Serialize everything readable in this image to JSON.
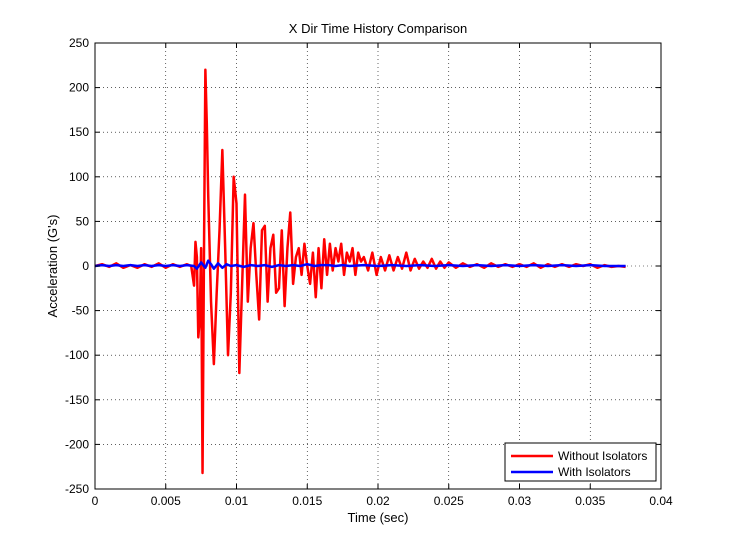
{
  "chart_data": {
    "type": "line",
    "title": "X Dir Time History Comparison",
    "xlabel": "Time (sec)",
    "ylabel": "Acceleration (G's)",
    "xlim": [
      0,
      0.04
    ],
    "ylim": [
      -250,
      250
    ],
    "xticks": [
      0,
      0.005,
      0.01,
      0.015,
      0.02,
      0.025,
      0.03,
      0.035,
      0.04
    ],
    "xtick_labels": [
      "0",
      "0.005",
      "0.01",
      "0.015",
      "0.02",
      "0.025",
      "0.03",
      "0.035",
      "0.04"
    ],
    "yticks": [
      -250,
      -200,
      -150,
      -100,
      -50,
      0,
      50,
      100,
      150,
      200,
      250
    ],
    "ytick_labels": [
      "-250",
      "-200",
      "-150",
      "-100",
      "-50",
      "0",
      "50",
      "100",
      "150",
      "200",
      "250"
    ],
    "grid": true,
    "legend_position": "bottom-right",
    "series": [
      {
        "name": "Without Isolators",
        "color": "#ff0000",
        "x": [
          0,
          0.0005,
          0.001,
          0.0015,
          0.002,
          0.0025,
          0.003,
          0.0035,
          0.004,
          0.0045,
          0.005,
          0.0055,
          0.006,
          0.0065,
          0.0068,
          0.007,
          0.0071,
          0.0072,
          0.0073,
          0.0074,
          0.0075,
          0.0076,
          0.0077,
          0.0078,
          0.0079,
          0.008,
          0.0082,
          0.0084,
          0.0086,
          0.0088,
          0.009,
          0.0092,
          0.0094,
          0.0096,
          0.0098,
          0.01,
          0.0102,
          0.0104,
          0.0106,
          0.0108,
          0.011,
          0.0112,
          0.0114,
          0.0116,
          0.0118,
          0.012,
          0.0122,
          0.0124,
          0.0126,
          0.0128,
          0.013,
          0.0132,
          0.0134,
          0.0136,
          0.0138,
          0.014,
          0.0142,
          0.0144,
          0.0146,
          0.0148,
          0.015,
          0.0152,
          0.0154,
          0.0156,
          0.0158,
          0.016,
          0.0162,
          0.0164,
          0.0166,
          0.0168,
          0.017,
          0.0172,
          0.0174,
          0.0176,
          0.0178,
          0.018,
          0.0182,
          0.0184,
          0.0186,
          0.0188,
          0.019,
          0.0193,
          0.0196,
          0.0199,
          0.0202,
          0.0205,
          0.0208,
          0.0211,
          0.0214,
          0.0217,
          0.022,
          0.0223,
          0.0226,
          0.0229,
          0.0232,
          0.0235,
          0.0238,
          0.0241,
          0.0244,
          0.0247,
          0.025,
          0.0255,
          0.026,
          0.0265,
          0.027,
          0.0275,
          0.028,
          0.0285,
          0.029,
          0.0295,
          0.03,
          0.0305,
          0.031,
          0.0315,
          0.032,
          0.0325,
          0.033,
          0.0335,
          0.034,
          0.0345,
          0.035,
          0.0355,
          0.036,
          0.0365,
          0.037,
          0.0375
        ],
        "y": [
          0,
          2,
          -1,
          3,
          -2,
          1,
          -2,
          2,
          -1,
          3,
          -2,
          2,
          -1,
          2,
          0,
          -22,
          27,
          10,
          -80,
          -60,
          20,
          -232,
          10,
          220,
          160,
          80,
          -40,
          -110,
          -30,
          40,
          130,
          20,
          -100,
          -30,
          100,
          70,
          -120,
          -20,
          80,
          -40,
          20,
          48,
          -10,
          -60,
          40,
          45,
          -40,
          20,
          35,
          -30,
          -25,
          40,
          -45,
          20,
          60,
          -20,
          10,
          20,
          -10,
          25,
          0,
          -20,
          15,
          -35,
          20,
          -25,
          30,
          -10,
          25,
          -5,
          20,
          5,
          25,
          -10,
          15,
          5,
          20,
          -10,
          15,
          5,
          10,
          -5,
          15,
          -10,
          10,
          -5,
          12,
          -5,
          10,
          -3,
          15,
          -5,
          8,
          -3,
          5,
          -2,
          8,
          -3,
          5,
          -2,
          4,
          -2,
          3,
          -1,
          2,
          -2,
          3,
          -1,
          2,
          -1,
          2,
          -1,
          3,
          -2,
          2,
          -1,
          2,
          -1,
          2,
          0,
          2,
          -2,
          1,
          -1,
          0,
          -1
        ]
      },
      {
        "name": "With Isolators",
        "color": "#0000ff",
        "x": [
          0,
          0.0005,
          0.001,
          0.0015,
          0.002,
          0.0025,
          0.003,
          0.0035,
          0.004,
          0.0045,
          0.005,
          0.0055,
          0.006,
          0.0065,
          0.007,
          0.0072,
          0.0075,
          0.0078,
          0.008,
          0.0082,
          0.0084,
          0.0087,
          0.009,
          0.0093,
          0.0096,
          0.01,
          0.0105,
          0.011,
          0.0115,
          0.012,
          0.0125,
          0.013,
          0.0135,
          0.014,
          0.0145,
          0.015,
          0.0155,
          0.016,
          0.0165,
          0.017,
          0.0175,
          0.018,
          0.019,
          0.02,
          0.021,
          0.022,
          0.023,
          0.024,
          0.025,
          0.026,
          0.027,
          0.028,
          0.029,
          0.03,
          0.031,
          0.032,
          0.033,
          0.034,
          0.035,
          0.036,
          0.037,
          0.0375
        ],
        "y": [
          0,
          1,
          0,
          1,
          0,
          1,
          0,
          1,
          0,
          1,
          0,
          1,
          0,
          1,
          0,
          -3,
          4,
          -2,
          6,
          2,
          -3,
          3,
          -2,
          2,
          0,
          1,
          -1,
          1,
          0,
          1,
          -1,
          1,
          0,
          1,
          0,
          2,
          0,
          1,
          1,
          0,
          1,
          0,
          1,
          0,
          1,
          0,
          1,
          0,
          1,
          0,
          1,
          0,
          1,
          0,
          1,
          0,
          1,
          0,
          1,
          0,
          0,
          0
        ]
      }
    ]
  }
}
